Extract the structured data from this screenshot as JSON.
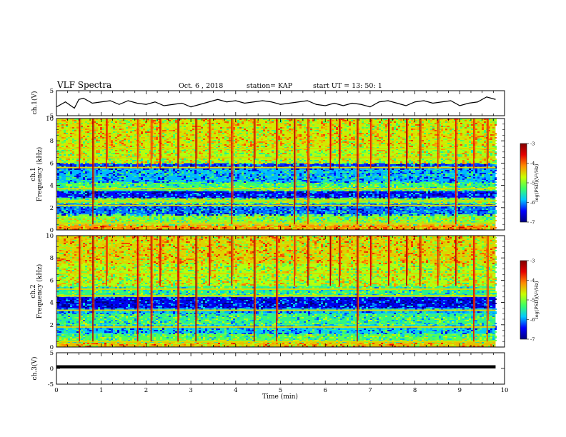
{
  "header": {
    "title": "VLF Spectra",
    "date": "Oct. 6 , 2018",
    "station": "station= KAP",
    "start": "start  UT =  13: 50: 1"
  },
  "colors": {
    "colormap": [
      "#00007f",
      "#0000ff",
      "#00c8ff",
      "#3cff64",
      "#c8ff00",
      "#ff8c00",
      "#e60000",
      "#800000"
    ],
    "trace": "#000000"
  },
  "chart_data": [
    {
      "type": "line",
      "panel": "ch1-voltage",
      "ylabel": "ch.1(V)",
      "ylim": [
        -5,
        5
      ],
      "yticks": [
        5,
        -5
      ],
      "xlim": [
        0,
        10
      ],
      "x": [
        0,
        0.2,
        0.4,
        0.5,
        0.6,
        0.8,
        1.0,
        1.2,
        1.4,
        1.6,
        1.8,
        2.0,
        2.2,
        2.4,
        2.6,
        2.8,
        3.0,
        3.2,
        3.4,
        3.6,
        3.8,
        4.0,
        4.2,
        4.4,
        4.6,
        4.8,
        5.0,
        5.2,
        5.4,
        5.6,
        5.8,
        6.0,
        6.2,
        6.4,
        6.6,
        6.8,
        7.0,
        7.2,
        7.4,
        7.6,
        7.8,
        8.0,
        8.2,
        8.4,
        8.6,
        8.8,
        9.0,
        9.2,
        9.4,
        9.6,
        9.8
      ],
      "y": [
        -1.5,
        0.5,
        -2.0,
        1.5,
        2.0,
        0.0,
        0.5,
        1.0,
        -0.5,
        1.0,
        0.0,
        -0.5,
        0.5,
        -1.0,
        -0.5,
        0.0,
        -1.5,
        -0.5,
        0.5,
        1.5,
        0.5,
        1.0,
        0.0,
        0.5,
        1.0,
        0.5,
        -0.5,
        0.0,
        0.5,
        1.0,
        -0.5,
        -1.0,
        0.0,
        -1.0,
        0.0,
        -0.5,
        -1.5,
        0.5,
        1.0,
        0.0,
        -1.0,
        0.5,
        1.0,
        0.0,
        0.5,
        1.0,
        -1.0,
        0.0,
        0.5,
        2.5,
        1.5
      ]
    },
    {
      "type": "heatmap",
      "panel": "ch1-spectrogram",
      "ylabel": "ch.1 Frequency (kHz)",
      "ylim": [
        0,
        10
      ],
      "yticks": [
        0,
        2,
        4,
        6,
        8,
        10
      ],
      "xlim": [
        0,
        10
      ],
      "colorbar": {
        "label": "log(PSD)(V²/Hz)",
        "range": [
          -7,
          -3
        ],
        "ticks": [
          "-3",
          "-4",
          "-5",
          "-6",
          "-7"
        ]
      },
      "bands": [
        {
          "from": 0.0,
          "to": 0.5,
          "level": -4.2
        },
        {
          "from": 0.5,
          "to": 1.4,
          "level": -5.0
        },
        {
          "from": 1.4,
          "to": 2.4,
          "level": -6.1
        },
        {
          "from": 2.4,
          "to": 2.9,
          "level": -5.1
        },
        {
          "from": 2.9,
          "to": 3.5,
          "level": -6.4
        },
        {
          "from": 3.5,
          "to": 4.3,
          "level": -5.3
        },
        {
          "from": 4.3,
          "to": 5.5,
          "level": -5.9
        },
        {
          "from": 5.5,
          "to": 6.0,
          "level": -6.3
        },
        {
          "from": 6.0,
          "to": 7.5,
          "level": -4.8
        },
        {
          "from": 7.5,
          "to": 10.0,
          "level": -4.6
        }
      ],
      "lines_khz": [
        0.6,
        2.2,
        2.6,
        3.7,
        5.6,
        6.5,
        7.3
      ],
      "bursts_min": [
        0.5,
        0.8,
        1.1,
        1.8,
        2.1,
        2.3,
        2.7,
        3.1,
        3.4,
        3.9,
        4.4,
        4.9,
        5.3,
        5.6,
        6.1,
        6.3,
        6.7,
        7.0,
        7.4,
        7.8,
        8.1,
        8.5,
        8.9,
        9.3,
        9.6
      ]
    },
    {
      "type": "heatmap",
      "panel": "ch2-spectrogram",
      "ylabel": "ch.2 Frequency (kHz)",
      "ylim": [
        0,
        10
      ],
      "yticks": [
        0,
        2,
        4,
        6,
        8,
        10
      ],
      "xlim": [
        0,
        10
      ],
      "colorbar": {
        "label": "log(PSD)(V²/Hz)",
        "range": [
          -7,
          -3
        ],
        "ticks": [
          "-3",
          "-4",
          "-5",
          "-6",
          "-7"
        ]
      },
      "bands": [
        {
          "from": 0.0,
          "to": 0.5,
          "level": -4.4
        },
        {
          "from": 0.5,
          "to": 1.2,
          "level": -5.2
        },
        {
          "from": 1.2,
          "to": 2.0,
          "level": -5.8
        },
        {
          "from": 2.0,
          "to": 3.0,
          "level": -5.4
        },
        {
          "from": 3.0,
          "to": 3.5,
          "level": -5.9
        },
        {
          "from": 3.5,
          "to": 4.5,
          "level": -6.5
        },
        {
          "from": 4.5,
          "to": 5.5,
          "level": -5.4
        },
        {
          "from": 5.5,
          "to": 7.5,
          "level": -4.8
        },
        {
          "from": 7.5,
          "to": 10.0,
          "level": -4.5
        }
      ],
      "lines_khz": [
        0.5,
        1.8,
        3.3,
        4.6,
        5.2,
        6.6
      ],
      "bursts_min": [
        0.5,
        0.8,
        1.1,
        1.8,
        2.1,
        2.3,
        2.7,
        3.1,
        3.4,
        3.9,
        4.4,
        4.9,
        5.3,
        5.6,
        6.1,
        6.3,
        6.7,
        7.0,
        7.4,
        7.8,
        8.1,
        8.5,
        8.9,
        9.3,
        9.6
      ]
    },
    {
      "type": "line",
      "panel": "ch3-voltage",
      "ylabel": "ch.3(V)",
      "ylim": [
        -5,
        5
      ],
      "yticks": [
        5,
        0,
        -5
      ],
      "xlim": [
        0,
        10
      ],
      "x": [
        0,
        9.8
      ],
      "y": [
        0.5,
        0.5
      ]
    }
  ],
  "xaxis": {
    "label": "Time (min)",
    "ticks": [
      "0",
      "1",
      "2",
      "3",
      "4",
      "5",
      "6",
      "7",
      "8",
      "9",
      "10"
    ]
  }
}
